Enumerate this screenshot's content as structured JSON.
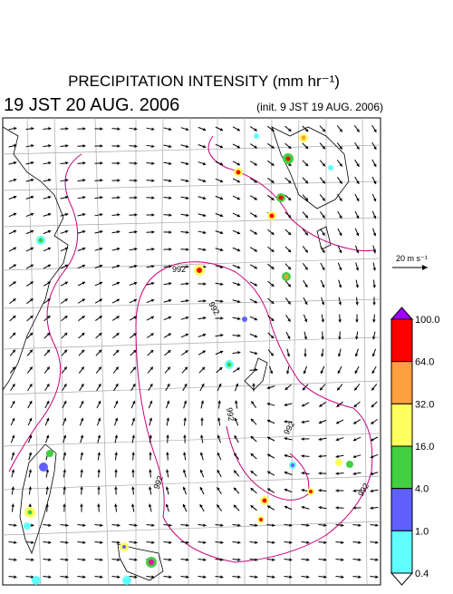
{
  "header": {
    "title": "PRECIPITATION INTENSITY (mm hr⁻¹)",
    "time": "19 JST 20 AUG. 2006",
    "init": "(init. 9 JST 19 AUG. 2006)"
  },
  "map": {
    "contour_label": "992",
    "vector_scale": "20 m s⁻¹"
  },
  "legend": {
    "labels": [
      "100.0",
      "64.0",
      "32.0",
      "16.0",
      "4.0",
      "1.0",
      "0.4"
    ],
    "colors": [
      "#a000ff",
      "#ff0000",
      "#ffa040",
      "#ffff60",
      "#40d040",
      "#6060ff",
      "#60ffff",
      "#ffffff"
    ]
  }
}
